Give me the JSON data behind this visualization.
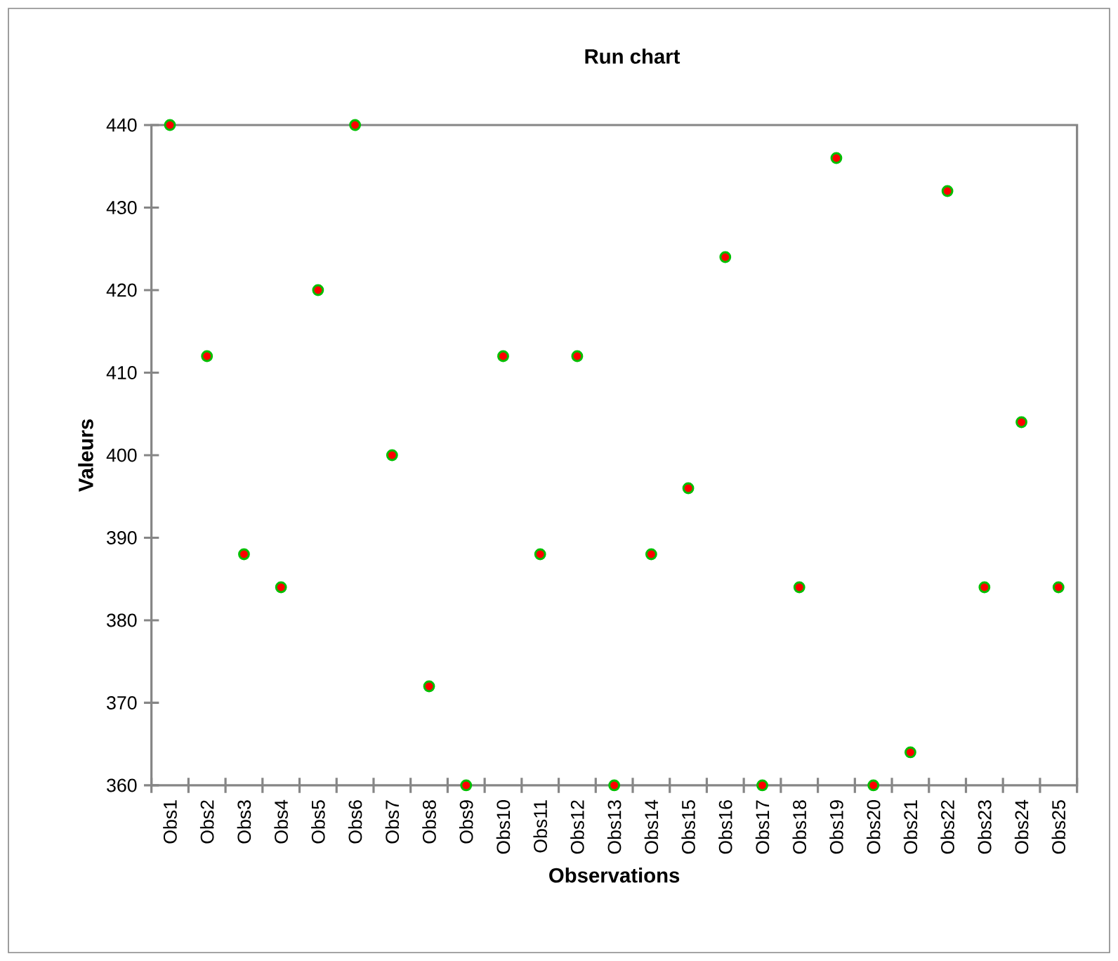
{
  "chart_data": {
    "type": "scatter",
    "title": "Run chart",
    "xlabel": "Observations",
    "ylabel": "Valeurs",
    "categories": [
      "Obs1",
      "Obs2",
      "Obs3",
      "Obs4",
      "Obs5",
      "Obs6",
      "Obs7",
      "Obs8",
      "Obs9",
      "Obs10",
      "Obs11",
      "Obs12",
      "Obs13",
      "Obs14",
      "Obs15",
      "Obs16",
      "Obs17",
      "Obs18",
      "Obs19",
      "Obs20",
      "Obs21",
      "Obs22",
      "Obs23",
      "Obs24",
      "Obs25"
    ],
    "values": [
      440,
      412,
      388,
      384,
      420,
      440,
      400,
      372,
      360,
      412,
      388,
      412,
      360,
      388,
      396,
      424,
      360,
      384,
      436,
      360,
      364,
      432,
      384,
      404,
      384
    ],
    "color": "#ff0000",
    "marker": "circle",
    "ylim": [
      360,
      440
    ],
    "yticks": [
      360,
      370,
      380,
      390,
      400,
      410,
      420,
      430,
      440
    ],
    "grid": false
  }
}
